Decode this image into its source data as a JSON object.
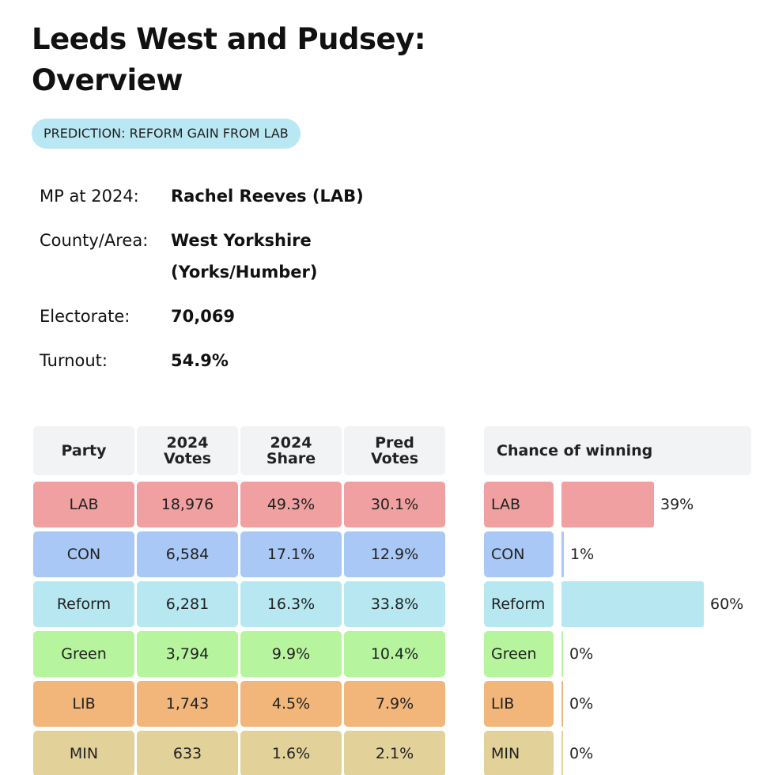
{
  "header": {
    "title_line1": "Leeds West and Pudsey:",
    "title_line2": "Overview",
    "prediction": "PREDICTION: REFORM GAIN FROM LAB"
  },
  "info": {
    "mp_label": "MP at 2024:",
    "mp_value": "Rachel Reeves  (LAB)",
    "area_label": "County/Area:",
    "area_value_line1": "West Yorkshire",
    "area_value_line2": "(Yorks/Humber)",
    "electorate_label": "Electorate:",
    "electorate_value": "70,069",
    "turnout_label": "Turnout:",
    "turnout_value": "54.9%"
  },
  "table": {
    "headers": [
      {
        "line1": "Party",
        "line2": ""
      },
      {
        "line1": "2024",
        "line2": "Votes"
      },
      {
        "line1": "2024",
        "line2": "Share"
      },
      {
        "line1": "Pred",
        "line2": "Votes"
      }
    ],
    "rows": [
      {
        "party": "LAB",
        "votes": "18,976",
        "share": "49.3%",
        "pred": "30.1%",
        "color": "#f0a0a0"
      },
      {
        "party": "CON",
        "votes": "6,584",
        "share": "17.1%",
        "pred": "12.9%",
        "color": "#a9c8f5"
      },
      {
        "party": "Reform",
        "votes": "6,281",
        "share": "16.3%",
        "pred": "33.8%",
        "color": "#b7e8f2"
      },
      {
        "party": "Green",
        "votes": "3,794",
        "share": "9.9%",
        "pred": "10.4%",
        "color": "#b6f59e"
      },
      {
        "party": "LIB",
        "votes": "1,743",
        "share": "4.5%",
        "pred": "7.9%",
        "color": "#f2b57a"
      },
      {
        "party": "MIN",
        "votes": "633",
        "share": "1.6%",
        "pred": "2.1%",
        "color": "#e3d19a"
      }
    ]
  },
  "chance": {
    "header": "Chance of winning",
    "rows": [
      {
        "party": "LAB",
        "pct": "39%",
        "value": 39,
        "color": "#f0a0a0"
      },
      {
        "party": "CON",
        "pct": "1%",
        "value": 1,
        "color": "#a9c8f5"
      },
      {
        "party": "Reform",
        "pct": "60%",
        "value": 60,
        "color": "#b7e8f2"
      },
      {
        "party": "Green",
        "pct": "0%",
        "value": 0,
        "color": "#b6f59e"
      },
      {
        "party": "LIB",
        "pct": "0%",
        "value": 0,
        "color": "#f2b57a"
      },
      {
        "party": "MIN",
        "pct": "0%",
        "value": 0,
        "color": "#e3d19a"
      }
    ]
  }
}
